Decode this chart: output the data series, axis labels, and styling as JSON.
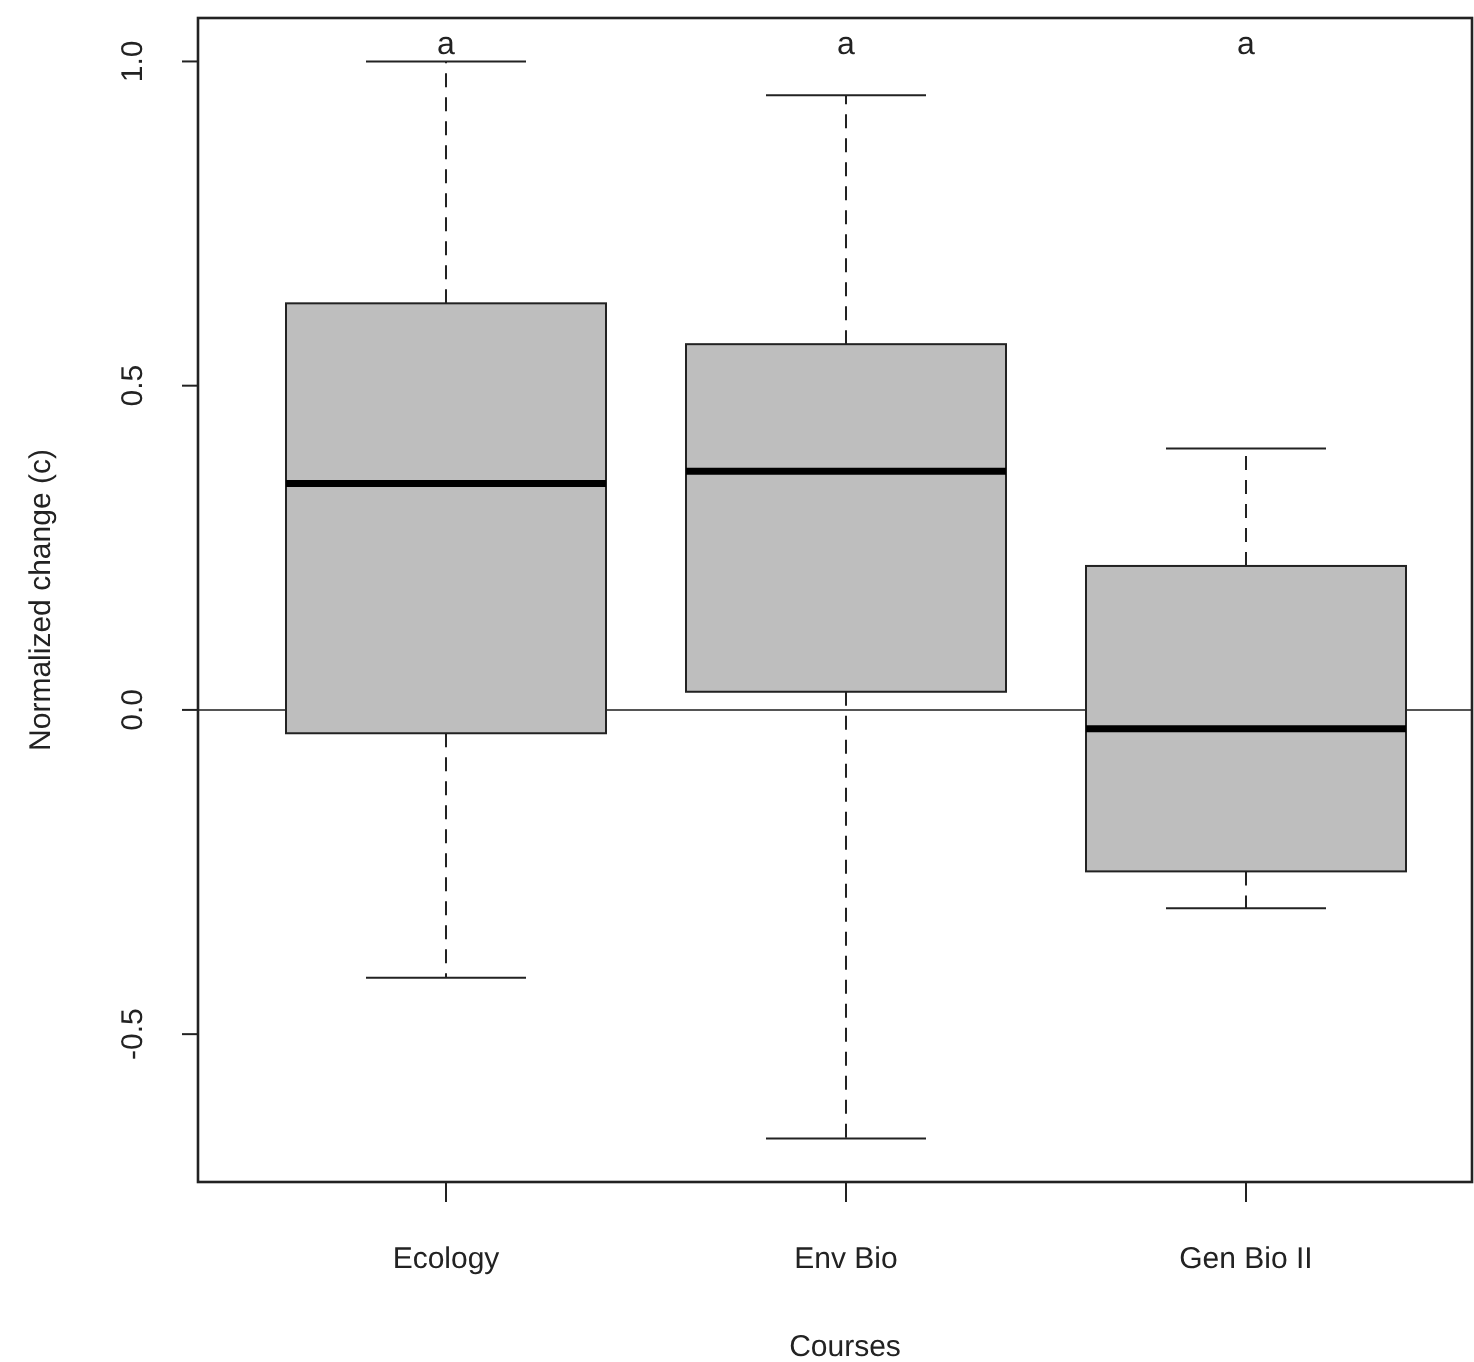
{
  "chart_data": {
    "type": "box",
    "xlabel": "Courses",
    "ylabel": "Normalized change (c)",
    "categories": [
      "Ecology",
      "Env Bio",
      "Gen Bio II"
    ],
    "color": "#bebebe",
    "boxes": [
      {
        "low": -0.413,
        "q1": -0.036,
        "median": 0.349,
        "q3": 0.627,
        "high": 1.0
      },
      {
        "low": -0.661,
        "q1": 0.028,
        "median": 0.368,
        "q3": 0.564,
        "high": 0.948
      },
      {
        "low": -0.306,
        "q1": -0.249,
        "median": -0.029,
        "q3": 0.222,
        "high": 0.403
      }
    ],
    "ylim": [
      -0.728,
      1.067
    ],
    "yticks": [
      -0.5,
      {
        "value": 0,
        "label": "0.0"
      },
      0.5,
      {
        "value": 1,
        "label": "1.0"
      }
    ],
    "ref_lines": [
      {
        "axis": "y",
        "value": 0,
        "color": "#555555"
      }
    ],
    "annotations": [
      "a",
      "a",
      "a"
    ],
    "grid": false
  }
}
